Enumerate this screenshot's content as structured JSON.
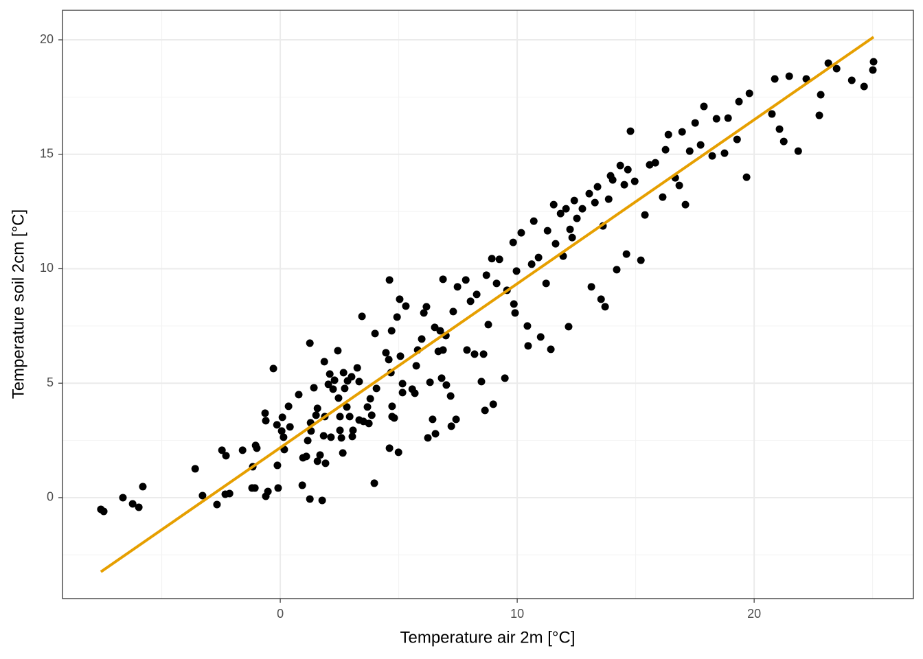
{
  "chart_data": {
    "type": "scatter",
    "xlabel": "Temperature air 2m [°C]",
    "ylabel": "Temperature soil 2cm [°C]",
    "xlim": [
      -9.19,
      26.72
    ],
    "ylim": [
      -4.41,
      21.29
    ],
    "xticks": [
      0,
      10,
      20
    ],
    "yticks": [
      0,
      5,
      10,
      15,
      20
    ],
    "xminor": [
      -5,
      5,
      15,
      25
    ],
    "yminor": [
      -2.5,
      2.5,
      7.5,
      12.5,
      17.5
    ],
    "grid": true,
    "color": "#000000",
    "x": [
      -7.57,
      -7.45,
      -6.64,
      -6.23,
      -5.97,
      -5.8,
      -3.59,
      -3.28,
      -2.67,
      -2.46,
      -2.29,
      -2.32,
      -2.14,
      -1.59,
      -1.19,
      -1.16,
      -1.07,
      -1.04,
      -0.99,
      -0.64,
      -0.61,
      -0.61,
      -0.52,
      -0.29,
      -0.14,
      -0.12,
      -0.09,
      0.06,
      0.09,
      0.14,
      0.17,
      0.35,
      0.41,
      0.78,
      0.93,
      0.96,
      1.1,
      1.16,
      1.25,
      1.25,
      1.28,
      1.3,
      1.42,
      1.51,
      1.57,
      1.57,
      1.68,
      1.77,
      1.83,
      1.86,
      1.88,
      1.91,
      2.03,
      2.09,
      2.14,
      2.23,
      2.29,
      2.43,
      2.46,
      2.52,
      2.52,
      2.58,
      2.64,
      2.67,
      2.72,
      2.81,
      2.84,
      2.93,
      3.01,
      3.04,
      3.07,
      3.25,
      3.33,
      3.33,
      3.45,
      3.51,
      3.68,
      3.74,
      3.8,
      3.86,
      3.97,
      4.0,
      4.06,
      4.46,
      4.58,
      4.61,
      4.61,
      4.67,
      4.7,
      4.72,
      4.72,
      4.81,
      4.93,
      4.99,
      5.04,
      5.07,
      5.16,
      5.16,
      5.3,
      5.57,
      5.68,
      5.74,
      5.8,
      5.97,
      6.06,
      6.17,
      6.23,
      6.32,
      6.43,
      6.52,
      6.55,
      6.67,
      6.75,
      6.81,
      6.87,
      6.87,
      6.99,
      7.01,
      7.19,
      7.22,
      7.3,
      7.42,
      7.48,
      7.83,
      7.88,
      8.03,
      8.2,
      8.29,
      8.49,
      8.58,
      8.64,
      8.7,
      8.78,
      8.93,
      8.99,
      9.13,
      9.25,
      9.48,
      9.57,
      9.83,
      9.86,
      9.91,
      9.97,
      10.17,
      10.43,
      10.46,
      10.61,
      10.7,
      10.9,
      10.99,
      11.22,
      11.28,
      11.42,
      11.54,
      11.62,
      11.83,
      11.94,
      12.06,
      12.17,
      12.23,
      12.32,
      12.41,
      12.52,
      12.75,
      13.04,
      13.13,
      13.28,
      13.39,
      13.54,
      13.62,
      13.71,
      13.86,
      13.94,
      14.03,
      14.2,
      14.35,
      14.52,
      14.61,
      14.67,
      14.78,
      14.96,
      15.22,
      15.39,
      15.59,
      15.83,
      16.14,
      16.26,
      16.38,
      16.67,
      16.84,
      16.96,
      17.1,
      17.28,
      17.51,
      17.74,
      17.88,
      18.23,
      18.41,
      18.75,
      18.9,
      19.28,
      19.36,
      19.68,
      19.8,
      20.75,
      20.87,
      21.07,
      21.25,
      21.48,
      21.86,
      22.2,
      22.75,
      22.81,
      23.13,
      23.48,
      24.12,
      24.64,
      25.04,
      25.01
    ],
    "values": [
      -0.51,
      -0.6,
      0.0,
      -0.27,
      -0.42,
      0.48,
      1.26,
      0.09,
      -0.3,
      2.07,
      1.83,
      0.15,
      0.18,
      2.07,
      0.42,
      1.35,
      0.42,
      2.28,
      2.16,
      3.69,
      3.36,
      0.06,
      0.27,
      5.64,
      3.18,
      1.41,
      0.42,
      2.91,
      3.51,
      2.64,
      2.1,
      3.99,
      3.09,
      4.5,
      0.54,
      1.74,
      1.8,
      2.49,
      6.75,
      -0.06,
      3.27,
      2.91,
      4.8,
      3.6,
      3.9,
      1.59,
      1.86,
      -0.12,
      2.7,
      5.94,
      3.54,
      1.5,
      4.95,
      5.4,
      2.64,
      4.74,
      5.13,
      6.42,
      4.35,
      3.54,
      2.94,
      2.61,
      1.95,
      5.46,
      4.77,
      3.96,
      5.1,
      3.54,
      5.28,
      2.67,
      2.94,
      5.67,
      5.07,
      3.39,
      7.92,
      3.33,
      3.96,
      3.24,
      4.32,
      3.6,
      0.63,
      7.17,
      4.77,
      6.33,
      6.03,
      9.51,
      2.16,
      5.46,
      7.29,
      3.99,
      3.54,
      3.48,
      7.89,
      1.98,
      8.67,
      6.18,
      4.98,
      4.59,
      8.37,
      4.74,
      4.56,
      5.76,
      6.45,
      6.93,
      8.07,
      8.34,
      2.61,
      5.04,
      3.42,
      7.44,
      2.79,
      6.39,
      7.29,
      5.22,
      9.54,
      6.45,
      7.08,
      4.92,
      4.44,
      3.12,
      8.13,
      3.42,
      9.21,
      9.51,
      6.45,
      8.58,
      6.27,
      8.88,
      5.07,
      6.27,
      3.81,
      9.72,
      7.56,
      10.44,
      4.08,
      9.36,
      10.41,
      5.22,
      9.06,
      11.15,
      8.46,
      8.07,
      9.9,
      11.57,
      7.5,
      6.63,
      10.2,
      12.08,
      10.49,
      7.02,
      9.36,
      11.66,
      6.48,
      12.8,
      11.09,
      12.41,
      10.55,
      12.62,
      7.47,
      11.72,
      11.36,
      12.98,
      12.2,
      12.62,
      13.28,
      9.21,
      12.89,
      13.58,
      8.67,
      11.87,
      8.34,
      13.04,
      14.06,
      13.88,
      9.96,
      14.51,
      13.67,
      10.64,
      14.33,
      16.01,
      13.82,
      10.37,
      12.35,
      14.54,
      14.63,
      13.13,
      15.2,
      15.86,
      13.97,
      13.64,
      15.98,
      12.8,
      15.14,
      16.37,
      15.41,
      17.09,
      14.93,
      16.55,
      15.05,
      16.58,
      15.65,
      17.3,
      14.0,
      17.66,
      16.76,
      18.29,
      16.1,
      15.56,
      18.41,
      15.14,
      18.29,
      16.7,
      17.6,
      18.98,
      18.74,
      18.23,
      17.96,
      19.04,
      18.68
    ],
    "fit_line": {
      "x": [
        -7.57,
        25.04
      ],
      "values": [
        -3.24,
        20.12
      ],
      "color": "#E69F00"
    }
  }
}
